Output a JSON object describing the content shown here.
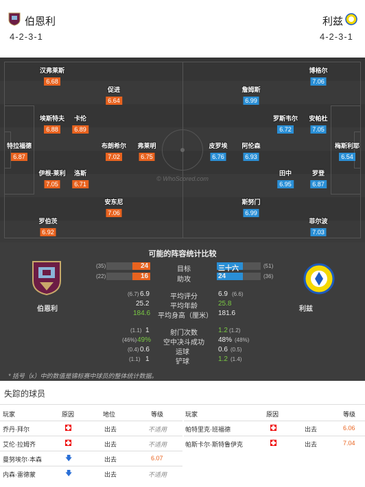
{
  "home": {
    "name": "伯恩利",
    "formation": "4-2-3-1",
    "color": "#6c1d45",
    "players": [
      {
        "name": "汉弗莱斯",
        "rating": "6.68"
      },
      {
        "name": "促进",
        "rating": "6.64"
      },
      {
        "name": "埃斯特夫",
        "rating": "6.88"
      },
      {
        "name": "卡伦",
        "rating": "6.89"
      },
      {
        "name": "特拉福德",
        "rating": "6.87"
      },
      {
        "name": "布朗希尔",
        "rating": "7.02"
      },
      {
        "name": "弗莱明",
        "rating": "6.75"
      },
      {
        "name": "伊根-莱利",
        "rating": "7.05"
      },
      {
        "name": "洛斯",
        "rating": "6.71"
      },
      {
        "name": "安东尼",
        "rating": "7.06"
      },
      {
        "name": "罗伯茨",
        "rating": "6.92"
      }
    ]
  },
  "away": {
    "name": "利兹",
    "formation": "4-2-3-1",
    "color": "#1d5bbf",
    "players": [
      {
        "name": "博格尔",
        "rating": "7.06"
      },
      {
        "name": "詹姆斯",
        "rating": "6.99"
      },
      {
        "name": "罗斯韦尔",
        "rating": "6.72"
      },
      {
        "name": "安帕杜",
        "rating": "7.05"
      },
      {
        "name": "梅斯利耶",
        "rating": "6.54"
      },
      {
        "name": "皮罗埃",
        "rating": "6.76"
      },
      {
        "name": "阿伦森",
        "rating": "6.93"
      },
      {
        "name": "田中",
        "rating": "6.95"
      },
      {
        "name": "罗登",
        "rating": "6.87"
      },
      {
        "name": "斯努门",
        "rating": "6.99"
      },
      {
        "name": "菲尔波",
        "rating": "7.03"
      }
    ]
  },
  "watermark": "© WhoScored.com",
  "comparison": {
    "title": "可能的阵容统计比较",
    "home_label": "伯恩利",
    "away_label": "利兹",
    "goals": {
      "label": "目标",
      "home": "24",
      "home_sub": "(35)",
      "away": "三十六",
      "away_sub": "(51)",
      "home_fill": 0.4,
      "away_fill": 0.6
    },
    "assists": {
      "label": "助攻",
      "home": "16",
      "home_sub": "(22)",
      "away": "24",
      "away_sub": "(36)",
      "home_fill": 0.4,
      "away_fill": 0.6
    },
    "rows1": [
      {
        "label": "平均评分",
        "home": "6.9",
        "home_sub": "(6.7)",
        "away": "6.9",
        "away_sub": "(6.6)"
      },
      {
        "label": "平均年龄",
        "home": "25.2",
        "home_sub": "",
        "away": "25.8",
        "away_sub": ""
      },
      {
        "label": "平均身高（厘米）",
        "home": "184.6",
        "home_sub": "",
        "away": "181.6",
        "away_sub": ""
      }
    ],
    "rows2": [
      {
        "label": "射门次数",
        "home": "1",
        "home_sub": "(1.1)",
        "away": "1.2",
        "away_sub": "(1.2)"
      },
      {
        "label": "空中决斗成功",
        "home": "49%",
        "home_sub": "(46%)",
        "away": "48%",
        "away_sub": "(48%)"
      },
      {
        "label": "运球",
        "home": "0.6",
        "home_sub": "(0.4)",
        "away": "0.6",
        "away_sub": "(0.5)"
      },
      {
        "label": "铲球",
        "home": "1",
        "home_sub": "(1.1)",
        "away": "1.2",
        "away_sub": "(1.4)"
      }
    ],
    "note": "* 括号（x）中的数值是锦标赛中球员的整体统计数据。"
  },
  "missing": {
    "title": "失踪的球员",
    "headers": {
      "player": "玩家",
      "reason": "原因",
      "position": "地位",
      "rating": "等级"
    },
    "home": [
      {
        "name": "乔丹·拜尔",
        "reason": "injury",
        "position": "出去",
        "rating": "不适用"
      },
      {
        "name": "艾伦·拉姆齐",
        "reason": "injury",
        "position": "出去",
        "rating": "不适用"
      },
      {
        "name": "曼努埃尔·本森",
        "reason": "transfer",
        "position": "出去",
        "rating": "6.07"
      },
      {
        "name": "内森·雷德蒙",
        "reason": "transfer",
        "position": "出去",
        "rating": "不适用"
      }
    ],
    "away": [
      {
        "name": "帕特里克·班福德",
        "reason": "injury",
        "position": "出去",
        "rating": "6.06"
      },
      {
        "name": "帕斯卡尔·斯特鲁伊克",
        "reason": "injury",
        "position": "出去",
        "rating": "7.04"
      }
    ]
  }
}
